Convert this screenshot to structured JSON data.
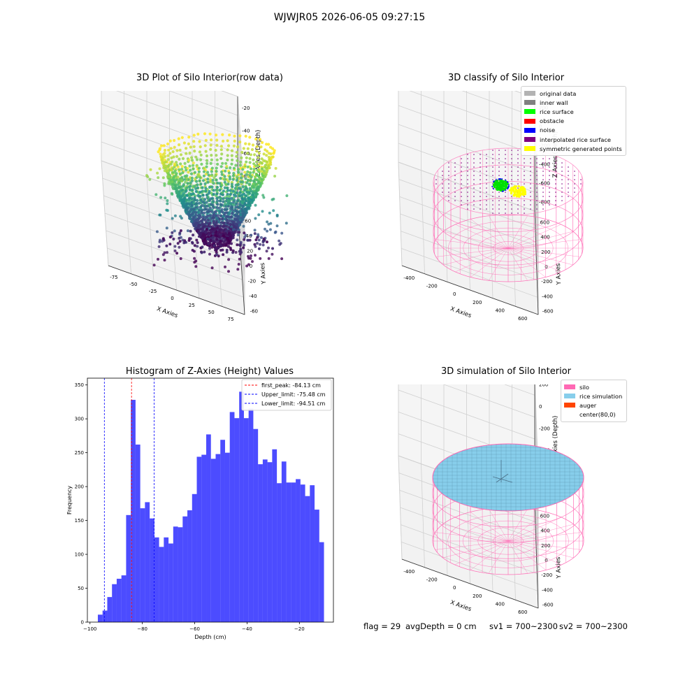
{
  "suptitle": "WJWJR05 2026-06-05 09:27:15",
  "panels": {
    "raw": {
      "title": "3D Plot of Silo Interior(row data)",
      "xlabel": "X Axies",
      "ylabel": "Y Axies",
      "zlabel": "Z Axies (Depth)",
      "xticks": [
        "-75",
        "-50",
        "-25",
        "0",
        "25",
        "50",
        "75"
      ],
      "yticks": [
        "-60",
        "-40",
        "-20",
        "0",
        "20",
        "40",
        "60"
      ],
      "zticks": [
        "-20",
        "-40",
        "-60",
        "-80",
        "-100"
      ]
    },
    "classify": {
      "title": "3D classify of Silo Interior",
      "xlabel": "X Axies",
      "ylabel": "Y Axies",
      "zlabel": "Z Axies (Depth)",
      "xticks": [
        "-400",
        "-200",
        "0",
        "200",
        "400",
        "600"
      ],
      "yticks": [
        "-600",
        "-400",
        "-200",
        "0",
        "200",
        "400",
        "600"
      ],
      "zticks": [
        "200",
        "0",
        "-200",
        "-400",
        "-600",
        "-800"
      ],
      "legend": [
        {
          "label": "original data",
          "color": "#b3b3b3"
        },
        {
          "label": "inner wall",
          "color": "#808080"
        },
        {
          "label": "rice surface",
          "color": "#00ff00"
        },
        {
          "label": "obstacle",
          "color": "#ff0000"
        },
        {
          "label": "noise",
          "color": "#0000ff"
        },
        {
          "label": "interpolated rice surface",
          "color": "#800080"
        },
        {
          "label": "symmetric generated points",
          "color": "#ffff00"
        }
      ]
    },
    "histogram": {
      "title": "Histogram of Z-Axies (Height) Values",
      "xlabel": "Depth (cm)",
      "ylabel": "Frequency",
      "legend": [
        {
          "label": "first_peak: -84.13 cm",
          "color": "#ff0000"
        },
        {
          "label": "Upper_limit: -75.48 cm",
          "color": "#0000ff"
        },
        {
          "label": "Lower_limit: -94.51 cm",
          "color": "#0000ff"
        }
      ]
    },
    "simulation": {
      "title": "3D simulation of Silo Interior",
      "xlabel": "X Axies",
      "ylabel": "Y Axies",
      "zlabel": "Z Axies (Depth)",
      "xticks": [
        "-400",
        "-200",
        "0",
        "200",
        "400",
        "600"
      ],
      "yticks": [
        "-600",
        "-400",
        "-200",
        "0",
        "200",
        "400",
        "600"
      ],
      "zticks": [
        "200",
        "0",
        "-200",
        "-400",
        "-600",
        "-800"
      ],
      "legend": [
        {
          "label": "silo",
          "color": "#ff69b4"
        },
        {
          "label": "rice simulation",
          "color": "#87ceeb"
        },
        {
          "label": "auger",
          "color": "#ff4500"
        },
        {
          "label": "center(80,0)",
          "color": ""
        }
      ]
    }
  },
  "status": {
    "flag": "flag = 29",
    "avg_depth": "avgDepth = 0 cm",
    "sv1": "sv1 = 700~2300",
    "sv2": "sv2 = 700~2300"
  },
  "chart_data": [
    {
      "type": "scatter",
      "title": "3D Plot of Silo Interior(row data)",
      "xlabel": "X Axies",
      "ylabel": "Y Axies",
      "zlabel": "Z Axies (Depth)",
      "xlim": [
        -90,
        90
      ],
      "ylim": [
        -65,
        65
      ],
      "zlim": [
        -100,
        -10
      ],
      "colormap": "viridis"
    },
    {
      "type": "scatter",
      "title": "3D classify of Silo Interior",
      "xlim": [
        -500,
        700
      ],
      "ylim": [
        -600,
        700
      ],
      "zlim": [
        -800,
        200
      ]
    },
    {
      "type": "bar",
      "title": "Histogram of Z-Axies (Height) Values",
      "xlabel": "Depth (cm)",
      "ylabel": "Frequency",
      "bin_start": -97.0,
      "bin_width": 1.8,
      "values": [
        11,
        17,
        37,
        56,
        64,
        69,
        158,
        328,
        262,
        168,
        177,
        153,
        125,
        111,
        125,
        116,
        141,
        140,
        156,
        165,
        189,
        244,
        247,
        277,
        241,
        248,
        269,
        250,
        310,
        301,
        340,
        301,
        315,
        285,
        233,
        240,
        236,
        255,
        205,
        237,
        206,
        206,
        211,
        203,
        186,
        202,
        166,
        118
      ],
      "xlim": [
        -101,
        -7
      ],
      "ylim": [
        0,
        360
      ],
      "xticks": [
        -100,
        -80,
        -60,
        -40,
        -20
      ],
      "yticks": [
        0,
        50,
        100,
        150,
        200,
        250,
        300,
        350
      ],
      "bar_color": "#0000ff",
      "vlines": [
        {
          "name": "first_peak",
          "x": -84.13,
          "color": "#ff0000"
        },
        {
          "name": "Upper_limit",
          "x": -75.48,
          "color": "#0000ff"
        },
        {
          "name": "Lower_limit",
          "x": -94.51,
          "color": "#0000ff"
        }
      ]
    },
    {
      "type": "scatter",
      "title": "3D simulation of Silo Interior",
      "xlim": [
        -500,
        700
      ],
      "ylim": [
        -600,
        700
      ],
      "zlim": [
        -800,
        200
      ]
    }
  ]
}
